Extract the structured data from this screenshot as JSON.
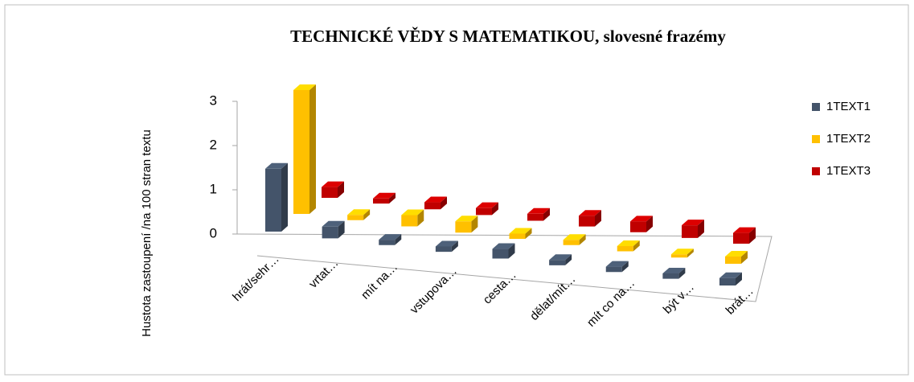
{
  "chart_data": {
    "type": "bar3d",
    "title": "TECHNICKÉ VĚDY S MATEMATIKOU, slovesné frazémy",
    "y_label": "Hustota zastoupení /na 100 stran textu",
    "categories": [
      "hrát/sehr…",
      "vrtat…",
      "mít na…",
      "vstupova…",
      "cesta…",
      "dělat/mít…",
      "mít co na…",
      "být v…",
      "brát…"
    ],
    "series": [
      {
        "name": "1TEXT1",
        "color": "#44546a",
        "values": [
          1.4,
          0.2,
          0.05,
          0.05,
          0.15,
          0.05,
          0.05,
          0.05,
          0.1
        ]
      },
      {
        "name": "1TEXT2",
        "color": "#ffc000",
        "values": [
          3.0,
          0.05,
          0.2,
          0.2,
          0.05,
          0.05,
          0.05,
          0,
          0.1
        ]
      },
      {
        "name": "1TEXT3",
        "color": "#c00000",
        "values": [
          0.2,
          0.05,
          0.1,
          0.1,
          0.1,
          0.2,
          0.2,
          0.25,
          0.2
        ]
      }
    ],
    "ylim": [
      0,
      3
    ],
    "yticks": [
      0,
      1,
      2,
      3
    ],
    "legend": "right"
  }
}
